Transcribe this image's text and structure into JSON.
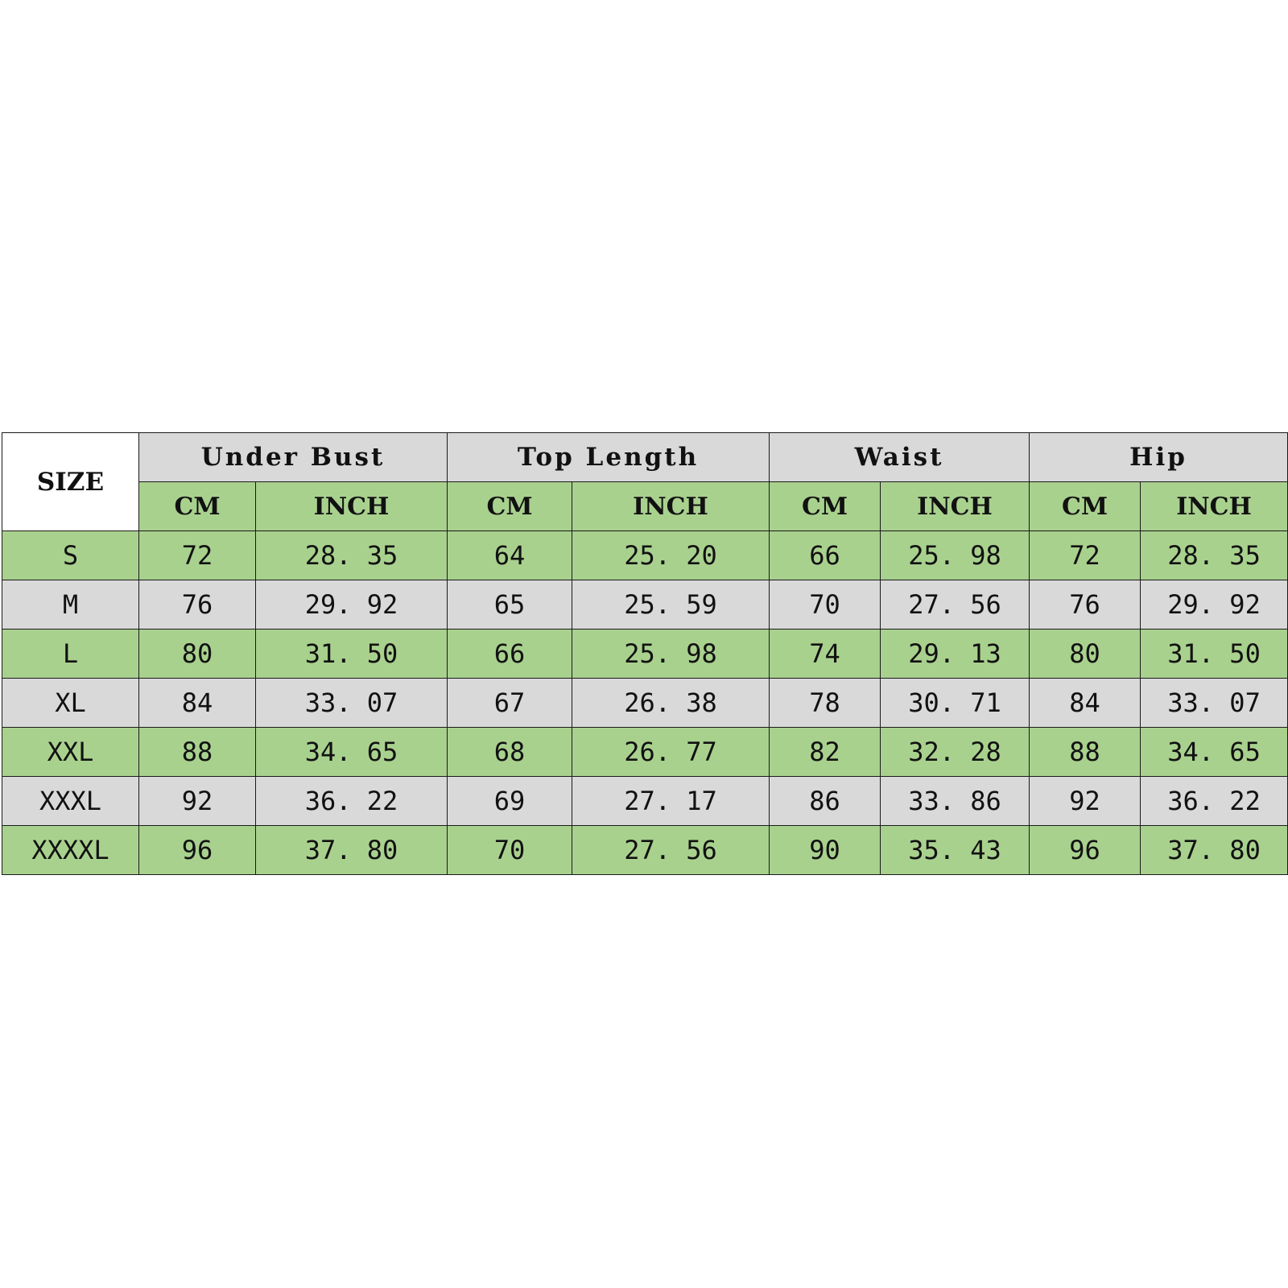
{
  "table": {
    "size_header": "SIZE",
    "groups": [
      "Under Bust",
      "Top Length",
      "Waist",
      "Hip"
    ],
    "units": [
      "CM",
      "INCH",
      "CM",
      "INCH",
      "CM",
      "INCH",
      "CM",
      "INCH"
    ],
    "rows": [
      {
        "size": "S",
        "values": [
          "72",
          "28. 35",
          "64",
          "25. 20",
          "66",
          "25. 98",
          "72",
          "28. 35"
        ]
      },
      {
        "size": "M",
        "values": [
          "76",
          "29. 92",
          "65",
          "25. 59",
          "70",
          "27. 56",
          "76",
          "29. 92"
        ]
      },
      {
        "size": "L",
        "values": [
          "80",
          "31. 50",
          "66",
          "25. 98",
          "74",
          "29. 13",
          "80",
          "31. 50"
        ]
      },
      {
        "size": "XL",
        "values": [
          "84",
          "33. 07",
          "67",
          "26. 38",
          "78",
          "30. 71",
          "84",
          "33. 07"
        ]
      },
      {
        "size": "XXL",
        "values": [
          "88",
          "34. 65",
          "68",
          "26. 77",
          "82",
          "32. 28",
          "88",
          "34. 65"
        ]
      },
      {
        "size": "XXXL",
        "values": [
          "92",
          "36. 22",
          "69",
          "27. 17",
          "86",
          "33. 86",
          "92",
          "36. 22"
        ]
      },
      {
        "size": "XXXXL",
        "values": [
          "96",
          "37. 80",
          "70",
          "27. 56",
          "90",
          "35. 43",
          "96",
          "37. 80"
        ]
      }
    ]
  },
  "colors": {
    "header_gray": "#d9d9d9",
    "row_green": "#a9d18e",
    "row_gray": "#d9d9d9",
    "border": "#1a1a1a"
  }
}
